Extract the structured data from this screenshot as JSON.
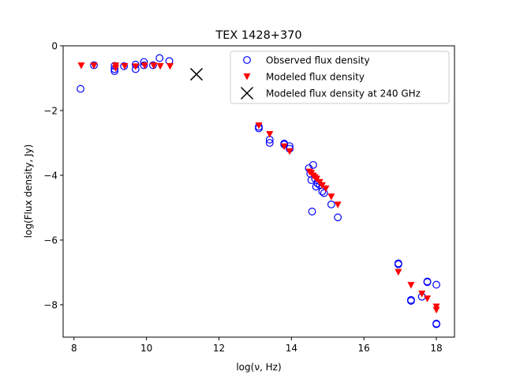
{
  "chart_data": {
    "type": "scatter",
    "title": "TEX 1428+370",
    "xlabel": "log(ν, Hz)",
    "ylabel": "log(Flux density, Jy)",
    "xlim": [
      7.7,
      18.5
    ],
    "ylim": [
      -9.0,
      0.0
    ],
    "xticks": [
      8,
      10,
      12,
      14,
      16,
      18
    ],
    "yticks": [
      0,
      -2,
      -4,
      -6,
      -8
    ],
    "grid": false,
    "legend_position": "top-right",
    "series": [
      {
        "name": "Observed flux density",
        "marker": "open-circle",
        "color": "#0000ff",
        "points": [
          [
            8.18,
            -1.33
          ],
          [
            8.55,
            -0.6
          ],
          [
            9.12,
            -0.72
          ],
          [
            9.12,
            -0.78
          ],
          [
            9.12,
            -0.62
          ],
          [
            9.38,
            -0.63
          ],
          [
            9.7,
            -0.72
          ],
          [
            9.7,
            -0.58
          ],
          [
            9.93,
            -0.5
          ],
          [
            9.93,
            -0.6
          ],
          [
            10.18,
            -0.6
          ],
          [
            10.36,
            -0.38
          ],
          [
            10.63,
            -0.47
          ],
          [
            13.1,
            -2.55
          ],
          [
            13.1,
            -2.5
          ],
          [
            13.4,
            -3.0
          ],
          [
            13.4,
            -2.9
          ],
          [
            13.8,
            -3.02
          ],
          [
            13.8,
            -3.05
          ],
          [
            13.95,
            -3.1
          ],
          [
            13.95,
            -3.18
          ],
          [
            14.48,
            -3.78
          ],
          [
            14.52,
            -3.95
          ],
          [
            14.55,
            -4.15
          ],
          [
            14.57,
            -5.12
          ],
          [
            14.6,
            -3.68
          ],
          [
            14.65,
            -4.1
          ],
          [
            14.68,
            -4.35
          ],
          [
            14.72,
            -4.25
          ],
          [
            14.78,
            -4.3
          ],
          [
            14.85,
            -4.5
          ],
          [
            14.9,
            -4.55
          ],
          [
            15.1,
            -4.9
          ],
          [
            15.28,
            -5.3
          ],
          [
            16.95,
            -6.72
          ],
          [
            16.95,
            -6.75
          ],
          [
            17.3,
            -7.85
          ],
          [
            17.3,
            -7.88
          ],
          [
            17.6,
            -7.75
          ],
          [
            17.75,
            -7.28
          ],
          [
            17.75,
            -7.3
          ],
          [
            18.0,
            -7.38
          ],
          [
            18.0,
            -8.58
          ],
          [
            18.0,
            -8.6
          ]
        ]
      },
      {
        "name": "Modeled flux density",
        "marker": "triangle-down",
        "color": "#ff0000",
        "points": [
          [
            8.2,
            -0.6
          ],
          [
            8.55,
            -0.6
          ],
          [
            9.15,
            -0.6
          ],
          [
            9.15,
            -0.68
          ],
          [
            9.4,
            -0.62
          ],
          [
            9.7,
            -0.63
          ],
          [
            9.95,
            -0.6
          ],
          [
            10.2,
            -0.6
          ],
          [
            10.38,
            -0.62
          ],
          [
            10.65,
            -0.62
          ],
          [
            13.1,
            -2.45
          ],
          [
            13.4,
            -2.72
          ],
          [
            13.8,
            -3.1
          ],
          [
            13.95,
            -3.25
          ],
          [
            14.5,
            -3.88
          ],
          [
            14.55,
            -3.92
          ],
          [
            14.6,
            -4.0
          ],
          [
            14.65,
            -4.05
          ],
          [
            14.7,
            -4.1
          ],
          [
            14.78,
            -4.2
          ],
          [
            14.85,
            -4.3
          ],
          [
            14.95,
            -4.4
          ],
          [
            15.1,
            -4.65
          ],
          [
            15.28,
            -4.9
          ],
          [
            16.95,
            -6.98
          ],
          [
            17.3,
            -7.38
          ],
          [
            17.6,
            -7.65
          ],
          [
            17.75,
            -7.8
          ],
          [
            18.0,
            -8.05
          ],
          [
            18.0,
            -8.15
          ]
        ]
      },
      {
        "name": "Modeled flux density at 240 GHz",
        "marker": "x",
        "color": "#000000",
        "points": [
          [
            11.38,
            -0.88
          ]
        ]
      }
    ]
  }
}
